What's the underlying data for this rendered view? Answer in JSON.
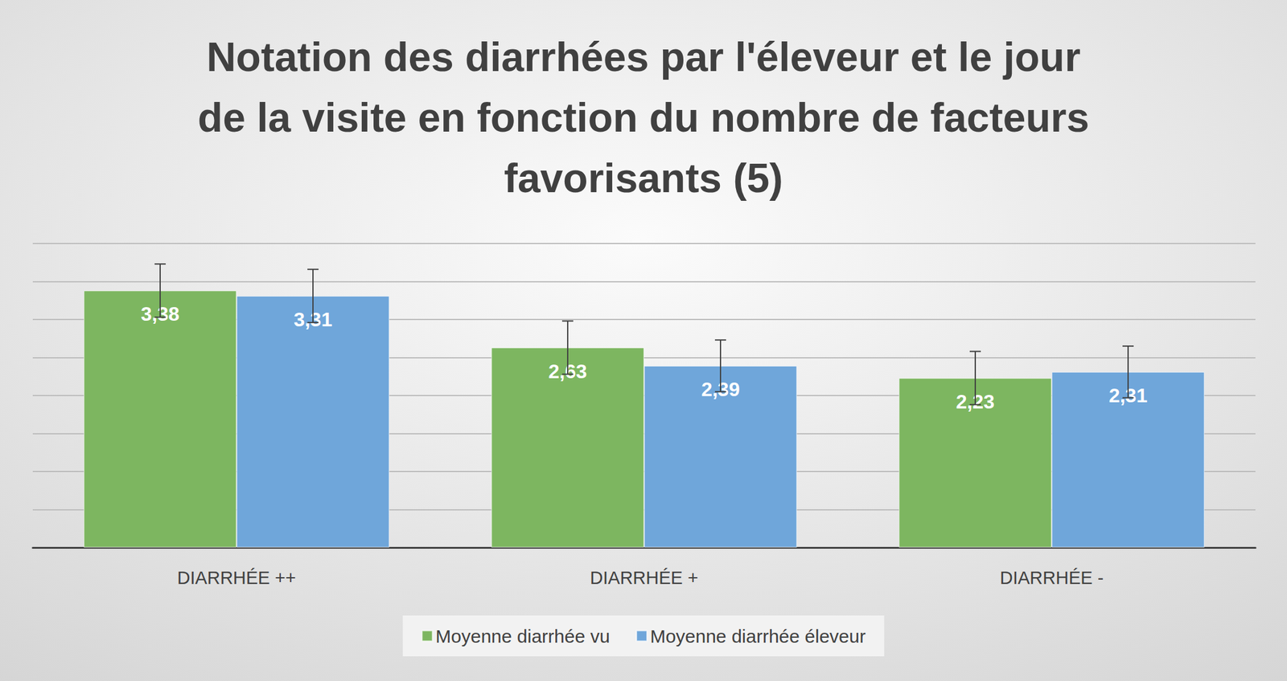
{
  "chart_data": {
    "type": "bar",
    "title": "Notation des diarrhées par l'éleveur et le jour de la visite en fonction du nombre de facteurs favorisants (5)",
    "categories": [
      "DIARRHÉE ++",
      "DIARRHÉE +",
      "DIARRHÉE -"
    ],
    "series": [
      {
        "name": "Moyenne diarrhée vu",
        "color": "#7db660",
        "values": [
          3.38,
          2.63,
          2.23
        ],
        "value_labels": [
          "3,38",
          "2,63",
          "2,23"
        ],
        "errors": [
          0.35,
          0.35,
          0.35
        ]
      },
      {
        "name": "Moyenne diarrhée éleveur",
        "color": "#6fa6da",
        "values": [
          3.31,
          2.39,
          2.31
        ],
        "value_labels": [
          "3,31",
          "2,39",
          "2,31"
        ],
        "errors": [
          0.35,
          0.34,
          0.34
        ]
      }
    ],
    "ylim": [
      0,
      4
    ],
    "yticks": [
      0,
      0.5,
      1,
      1.5,
      2,
      2.5,
      3,
      3.5,
      4
    ],
    "grid": true,
    "legend": "bottom",
    "data_labels": true,
    "tick_labels": "x"
  }
}
